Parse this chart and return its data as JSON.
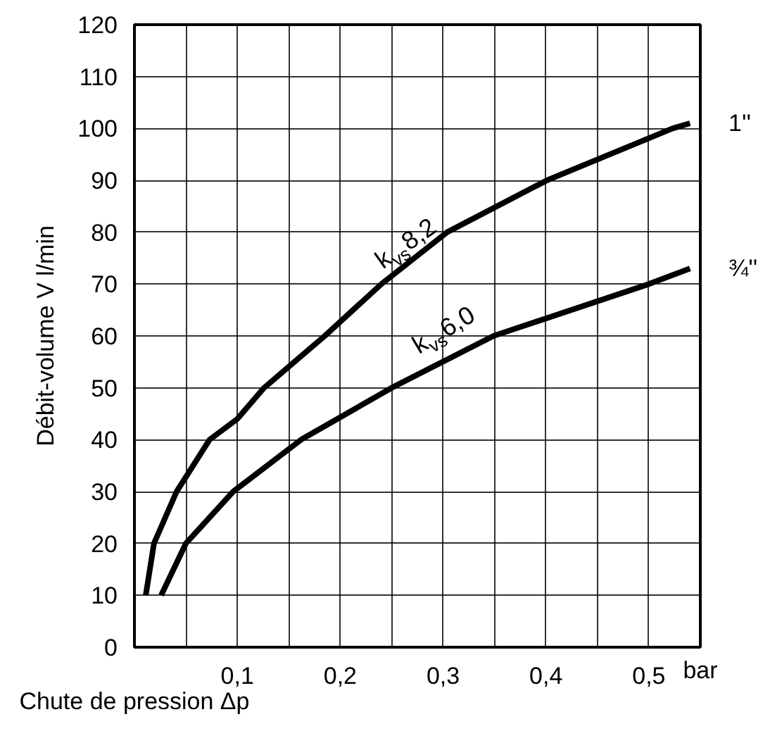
{
  "chart_data": {
    "type": "line",
    "xlabel": "Chute de pression Δp",
    "ylabel": "Débit-volume V l/min",
    "xlim": [
      0,
      0.55
    ],
    "ylim": [
      0,
      120
    ],
    "xticks": [
      {
        "value": 0.05,
        "label": null
      },
      {
        "value": 0.1,
        "label": "0,1"
      },
      {
        "value": 0.15,
        "label": null
      },
      {
        "value": 0.2,
        "label": "0,2"
      },
      {
        "value": 0.25,
        "label": null
      },
      {
        "value": 0.3,
        "label": "0,3"
      },
      {
        "value": 0.35,
        "label": null
      },
      {
        "value": 0.4,
        "label": "0,4"
      },
      {
        "value": 0.45,
        "label": null
      },
      {
        "value": 0.5,
        "label": "0,5"
      }
    ],
    "yticks": [
      0,
      10,
      20,
      30,
      40,
      50,
      60,
      70,
      80,
      90,
      100,
      110,
      120
    ],
    "grid": true,
    "marker": "none",
    "line_style": "solid",
    "series": [
      {
        "name": "1''",
        "color": "#000000",
        "x": [
          0.011,
          0.019,
          0.041,
          0.073,
          0.1,
          0.126,
          0.185,
          0.24,
          0.304,
          0.401,
          0.523,
          0.54
        ],
        "values": [
          10,
          20,
          30,
          40,
          44,
          50,
          60,
          70,
          80,
          90,
          100,
          101
        ]
      },
      {
        "name": "¾''",
        "color": "#000000",
        "x": [
          0.026,
          0.05,
          0.096,
          0.162,
          0.25,
          0.349,
          0.5,
          0.54
        ],
        "values": [
          10,
          20,
          30,
          40,
          50,
          60,
          70,
          73
        ]
      }
    ],
    "annotations": [
      "k$_{vs}$ 8,2",
      "k$_{vs}$ 6,0",
      "bar"
    ]
  }
}
